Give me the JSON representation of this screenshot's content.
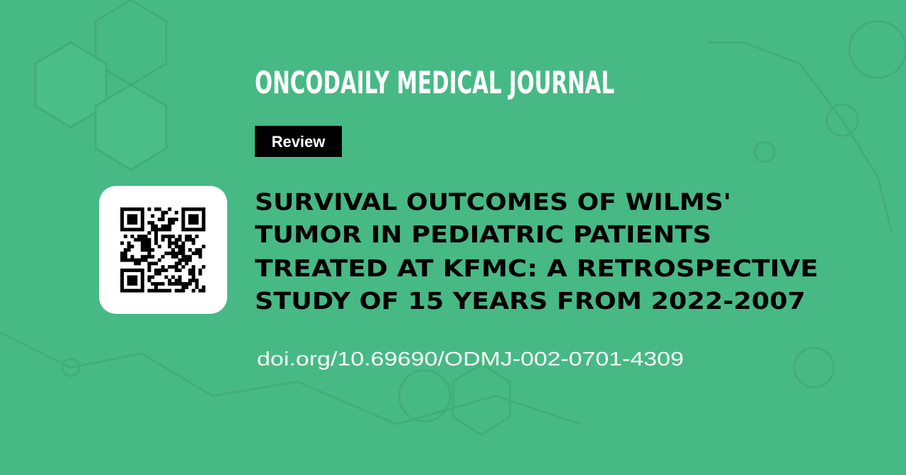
{
  "journal": "ONCODAILY MEDICAL JOURNAL",
  "tag": "Review",
  "title_lines": [
    "SURVIVAL OUTCOMES OF WILMS'",
    "TUMOR IN PEDIATRIC PATIENTS",
    "TREATED AT KFMC: A RETROSPECTIVE",
    "STUDY OF 15 YEARS FROM 2022-2007"
  ],
  "doi": "doi.org/10.69690/ODMJ-002-0701-4309"
}
